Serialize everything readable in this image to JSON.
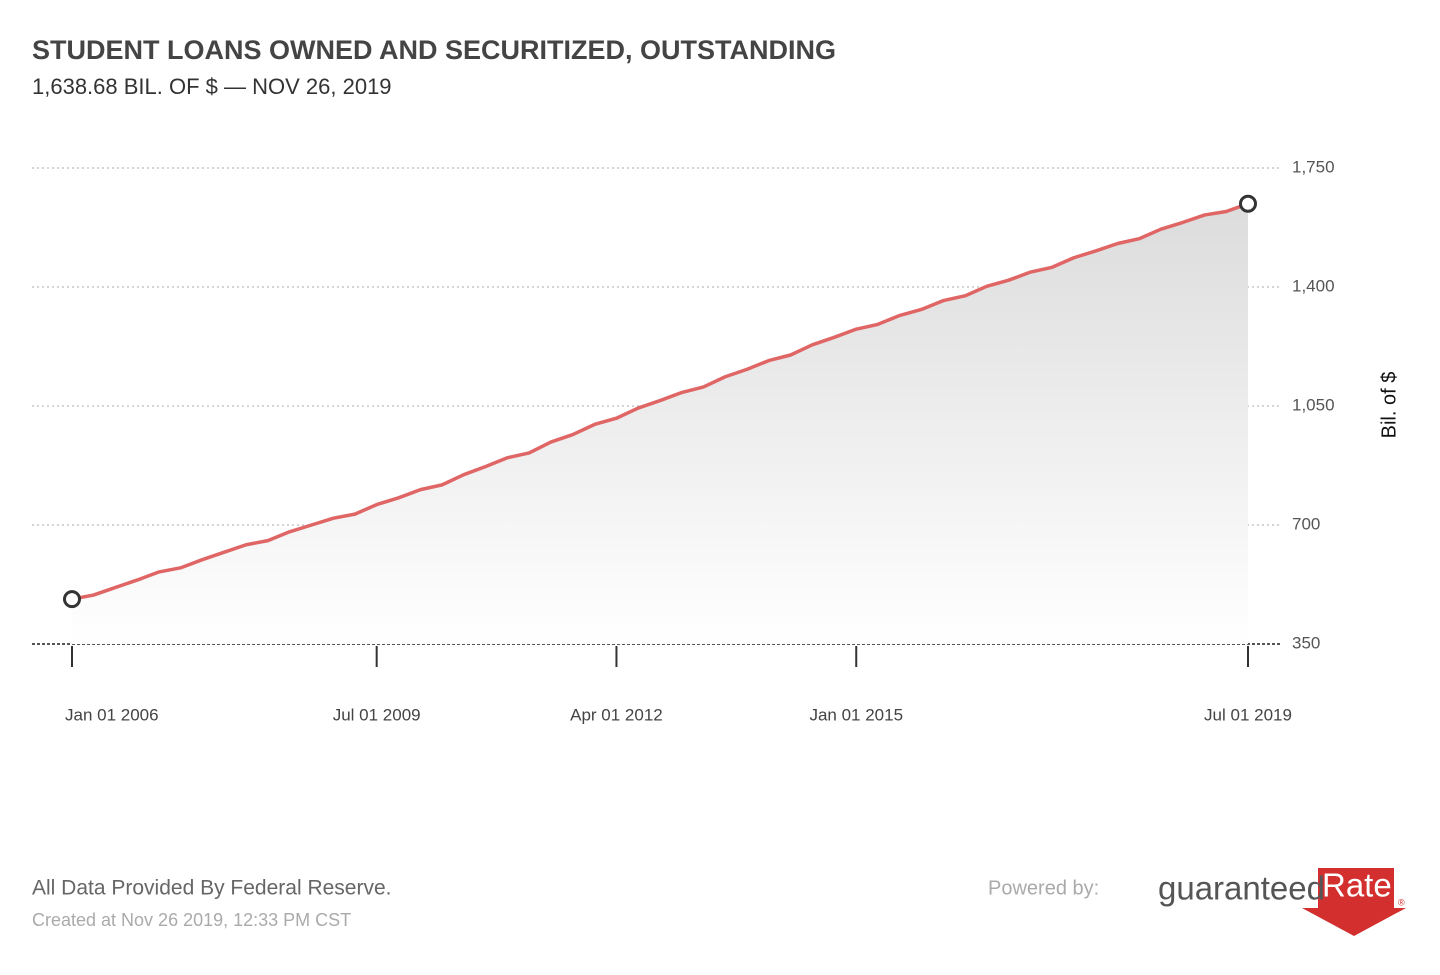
{
  "chart_data": {
    "type": "area",
    "title": "STUDENT LOANS OWNED AND SECURITIZED, OUTSTANDING",
    "subtitle": "1,638.68 BIL. OF $ — NOV 26, 2019",
    "y_label": "Bil. of $",
    "x": [
      "2006-01-01",
      "2006-04-01",
      "2006-07-01",
      "2006-10-01",
      "2007-01-01",
      "2007-04-01",
      "2007-07-01",
      "2007-10-01",
      "2008-01-01",
      "2008-04-01",
      "2008-07-01",
      "2008-10-01",
      "2009-01-01",
      "2009-04-01",
      "2009-07-01",
      "2009-10-01",
      "2010-01-01",
      "2010-04-01",
      "2010-07-01",
      "2010-10-01",
      "2011-01-01",
      "2011-04-01",
      "2011-07-01",
      "2011-10-01",
      "2012-01-01",
      "2012-04-01",
      "2012-07-01",
      "2012-10-01",
      "2013-01-01",
      "2013-04-01",
      "2013-07-01",
      "2013-10-01",
      "2014-01-01",
      "2014-04-01",
      "2014-07-01",
      "2014-10-01",
      "2015-01-01",
      "2015-04-01",
      "2015-07-01",
      "2015-10-01",
      "2016-01-01",
      "2016-04-01",
      "2016-07-01",
      "2016-10-01",
      "2017-01-01",
      "2017-04-01",
      "2017-07-01",
      "2017-10-01",
      "2018-01-01",
      "2018-04-01",
      "2018-07-01",
      "2018-10-01",
      "2019-01-01",
      "2019-04-01",
      "2019-07-01"
    ],
    "series": [
      {
        "name": "Student Loans",
        "color": "#e06666",
        "values": [
          482,
          494,
          516,
          538,
          562,
          574,
          598,
          620,
          642,
          654,
          680,
          700,
          720,
          732,
          760,
          780,
          804,
          818,
          848,
          872,
          898,
          912,
          944,
          966,
          996,
          1014,
          1044,
          1066,
          1090,
          1106,
          1136,
          1158,
          1184,
          1200,
          1230,
          1252,
          1276,
          1290,
          1316,
          1334,
          1360,
          1374,
          1402,
          1420,
          1444,
          1458,
          1486,
          1506,
          1528,
          1542,
          1570,
          1590,
          1612,
          1622,
          1645
        ]
      }
    ],
    "xlim": [
      "2006-01-01",
      "2019-07-01"
    ],
    "xticks": [
      {
        "value": "2006-01-01",
        "label": "Jan 01 2006"
      },
      {
        "value": "2009-07-01",
        "label": "Jul 01 2009"
      },
      {
        "value": "2012-04-01",
        "label": "Apr 01 2012"
      },
      {
        "value": "2015-01-01",
        "label": "Jan 01 2015"
      },
      {
        "value": "2019-07-01",
        "label": "Jul 01 2019"
      }
    ],
    "ylim": [
      350,
      1750
    ],
    "yticks": [
      350,
      700,
      {
        "value": 1050,
        "label": "1,050"
      },
      {
        "value": 1400,
        "label": "1,400"
      },
      {
        "value": 1750,
        "label": "1,750"
      }
    ],
    "grid": true,
    "source": "All Data Provided By Federal Reserve.",
    "created": "Created at Nov 26 2019, 12:33 PM CST",
    "powered_by": "Powered by:",
    "logo": {
      "left": "guaranteed",
      "right": "Rate",
      "mark": "®"
    }
  }
}
